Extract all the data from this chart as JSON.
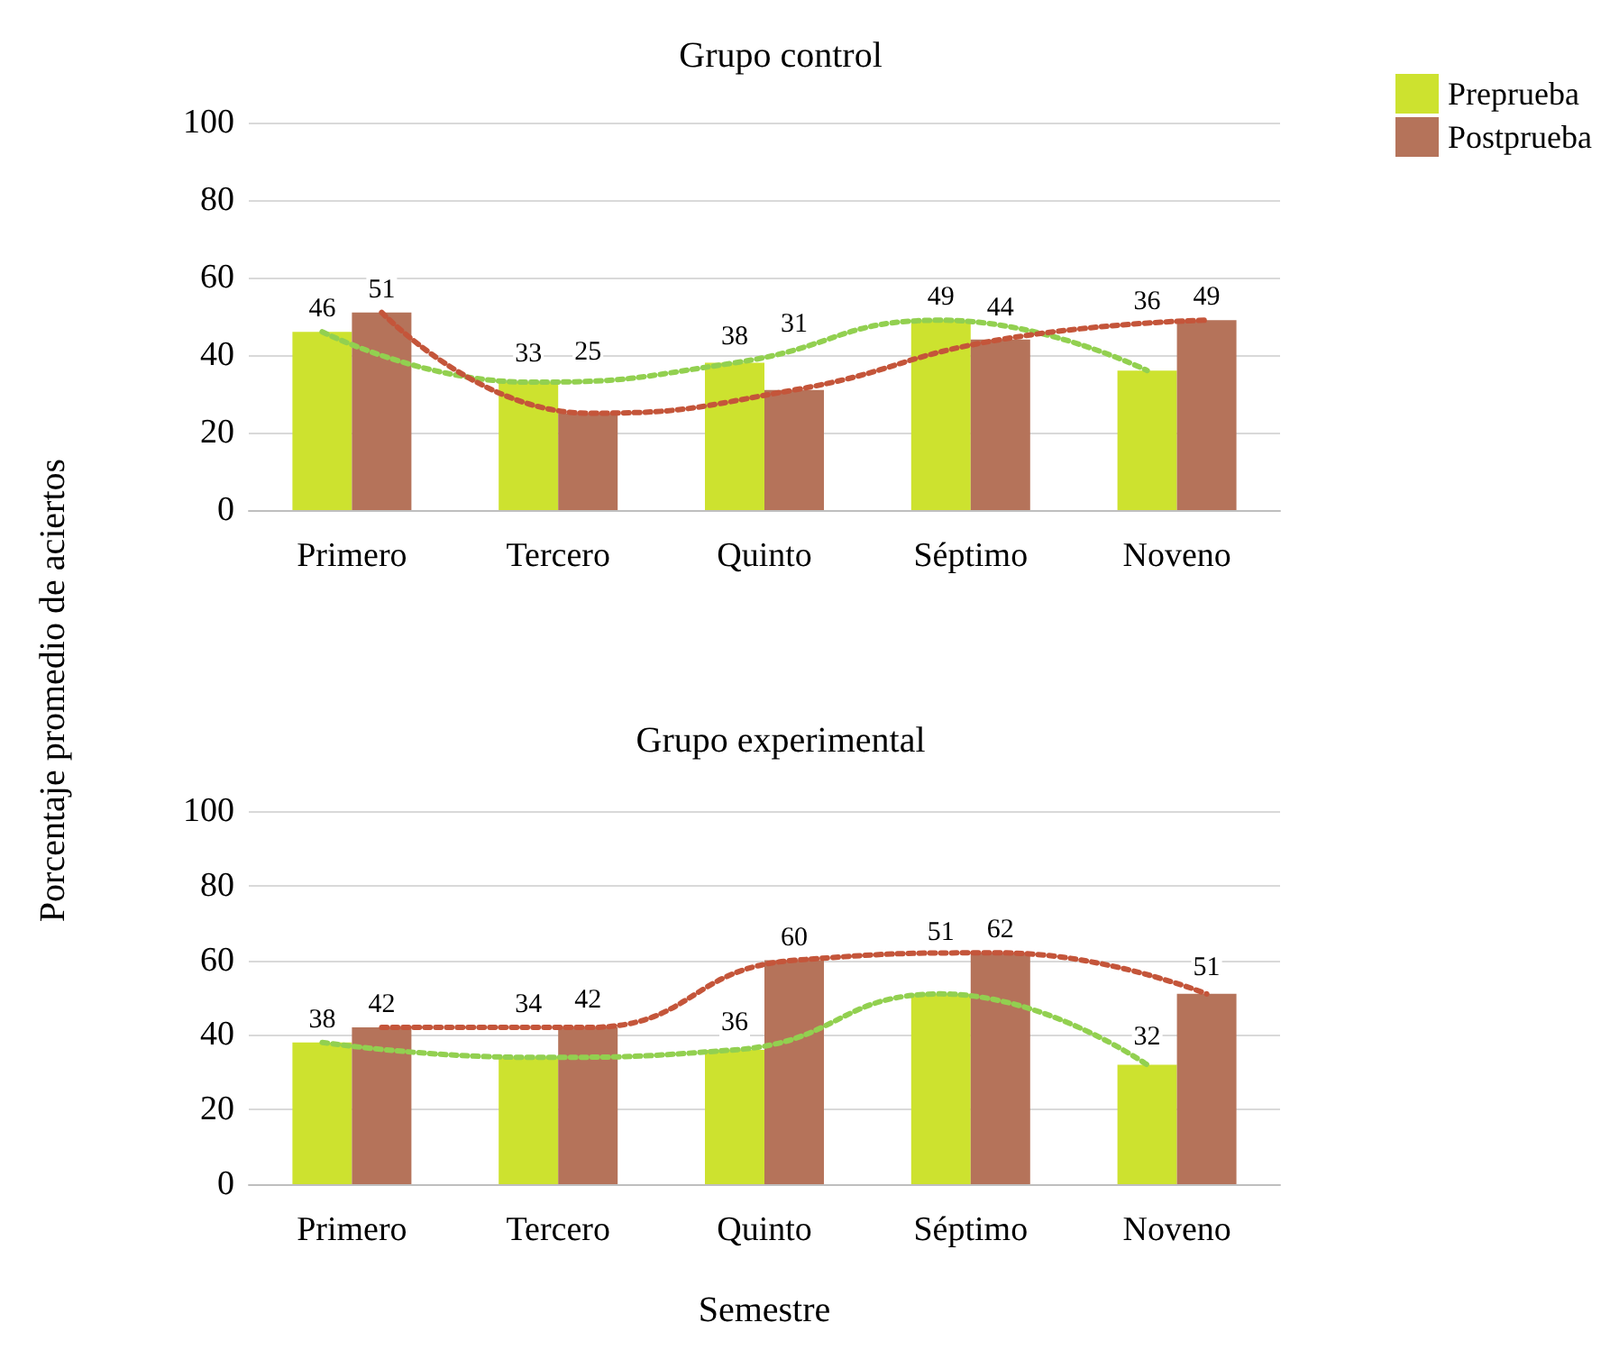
{
  "chart_data": [
    {
      "type": "bar",
      "title": "Grupo control",
      "ylabel": "Porcentaje promedio de aciertos",
      "categories": [
        "Primero",
        "Tercero",
        "Quinto",
        "Séptimo",
        "Noveno"
      ],
      "series": [
        {
          "name": "Preprueba",
          "color": "#cde22f",
          "values": [
            46,
            33,
            38,
            49,
            36
          ]
        },
        {
          "name": "Postprueba",
          "color": "#b5735a",
          "values": [
            51,
            25,
            31,
            44,
            49
          ]
        },
        {
          "type": "line",
          "color": "#92d050",
          "line_style": "dotted",
          "values": [
            46,
            33,
            38,
            49,
            36
          ],
          "value_labels": [
            null,
            null,
            null,
            null,
            null
          ]
        },
        {
          "type": "line",
          "color": "#c4553a",
          "line_style": "dotted",
          "values": [
            51,
            25,
            31,
            44,
            49
          ],
          "value_labels": [
            null,
            null,
            null,
            null,
            null
          ]
        }
      ],
      "ylim": [
        0,
        100
      ],
      "yticks": [
        0,
        20,
        40,
        60,
        80,
        100
      ],
      "grid": "y",
      "legend": "top right",
      "data_labels": true,
      "marker": "none"
    },
    {
      "type": "bar",
      "title": "Grupo experimental",
      "xlabel": "Semestre",
      "categories": [
        "Primero",
        "Tercero",
        "Quinto",
        "Séptimo",
        "Noveno"
      ],
      "series": [
        {
          "color": "#cde22f",
          "values": [
            38,
            34,
            36,
            51,
            32
          ]
        },
        {
          "color": "#b5735a",
          "values": [
            42,
            42,
            60,
            62,
            51
          ]
        },
        {
          "type": "line",
          "color": "#92d050",
          "line_style": "dotted",
          "values": [
            38,
            34,
            36,
            51,
            32
          ],
          "value_labels": [
            null,
            null,
            null,
            null,
            null
          ]
        },
        {
          "type": "line",
          "color": "#c4553a",
          "line_style": "dotted",
          "values": [
            42,
            42,
            60,
            62,
            51
          ],
          "value_labels": [
            null,
            null,
            null,
            null,
            null
          ]
        }
      ],
      "ylim": [
        0,
        100
      ],
      "yticks": [
        0,
        20,
        40,
        60,
        80,
        100
      ],
      "grid": "y",
      "data_labels": true,
      "marker": "none"
    }
  ]
}
